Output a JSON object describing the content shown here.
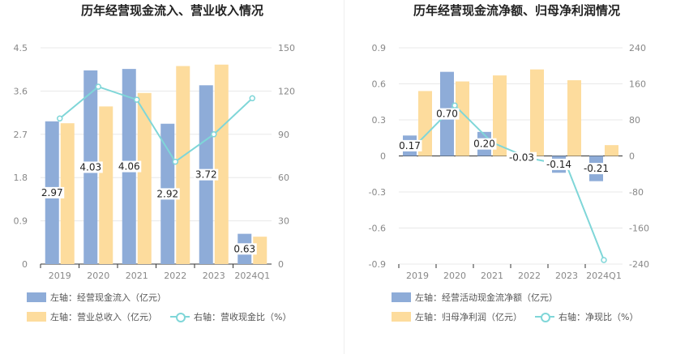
{
  "colors": {
    "bar1": "#8eacd8",
    "bar2": "#fddc9d",
    "line": "#7fd6d8",
    "grid": "#e8e8e8",
    "axis_text": "#888888"
  },
  "left": {
    "title": "历年经营现金流入、营业收入情况",
    "legend": {
      "s1": "左轴：经营现金流入（亿元）",
      "s2": "左轴：营业总收入（亿元）",
      "s3": "右轴：营收现金比（%）"
    }
  },
  "right": {
    "title": "历年经营现金流净额、归母净利润情况",
    "legend": {
      "s1": "左轴：经营活动现金流净额（亿元）",
      "s2": "左轴：归母净利润（亿元）",
      "s3": "右轴：净现比（%）"
    }
  },
  "chart_data": [
    {
      "type": "bar",
      "categories": [
        "2019",
        "2020",
        "2021",
        "2022",
        "2023",
        "2024Q1"
      ],
      "left_ticks": [
        "0",
        "0.9",
        "1.8",
        "2.7",
        "3.6",
        "4.5"
      ],
      "right_ticks": [
        "0",
        "30",
        "60",
        "90",
        "120",
        "150"
      ],
      "ylim": [
        0,
        4.5
      ],
      "y2lim": [
        0,
        150
      ],
      "series": [
        {
          "name": "左轴：经营现金流入（亿元）",
          "axis": "left",
          "kind": "bar",
          "values": [
            2.97,
            4.03,
            4.06,
            2.92,
            3.72,
            0.63
          ],
          "labels": [
            "2.97",
            "4.03",
            "4.06",
            "2.92",
            "3.72",
            "0.63"
          ]
        },
        {
          "name": "左轴：营业总收入（亿元）",
          "axis": "left",
          "kind": "bar",
          "values": [
            2.93,
            3.28,
            3.56,
            4.12,
            4.15,
            0.57
          ]
        },
        {
          "name": "右轴：营收现金比（%）",
          "axis": "right",
          "kind": "line",
          "values": [
            101,
            123,
            114,
            71,
            90,
            115
          ]
        }
      ]
    },
    {
      "type": "bar",
      "categories": [
        "2019",
        "2020",
        "2021",
        "2022",
        "2023",
        "2024Q1"
      ],
      "left_ticks": [
        "-0.9",
        "-0.6",
        "-0.3",
        "0",
        "0.3",
        "0.6",
        "0.9"
      ],
      "right_ticks": [
        "-240",
        "-160",
        "-80",
        "0",
        "80",
        "160",
        "240"
      ],
      "ylim": [
        -0.9,
        0.9
      ],
      "y2lim": [
        -240,
        240
      ],
      "series": [
        {
          "name": "左轴：经营活动现金流净额（亿元）",
          "axis": "left",
          "kind": "bar",
          "values": [
            0.17,
            0.7,
            0.2,
            -0.03,
            -0.14,
            -0.21
          ],
          "labels": [
            "0.17",
            "0.70",
            "0.20",
            "-0.03",
            "-0.14",
            "-0.21"
          ]
        },
        {
          "name": "左轴：归母净利润（亿元）",
          "axis": "left",
          "kind": "bar",
          "values": [
            0.54,
            0.62,
            0.67,
            0.72,
            0.63,
            0.09
          ]
        },
        {
          "name": "右轴：净现比（%）",
          "axis": "right",
          "kind": "line",
          "values": [
            28,
            112,
            30,
            -5,
            -21,
            -231
          ]
        }
      ]
    }
  ]
}
